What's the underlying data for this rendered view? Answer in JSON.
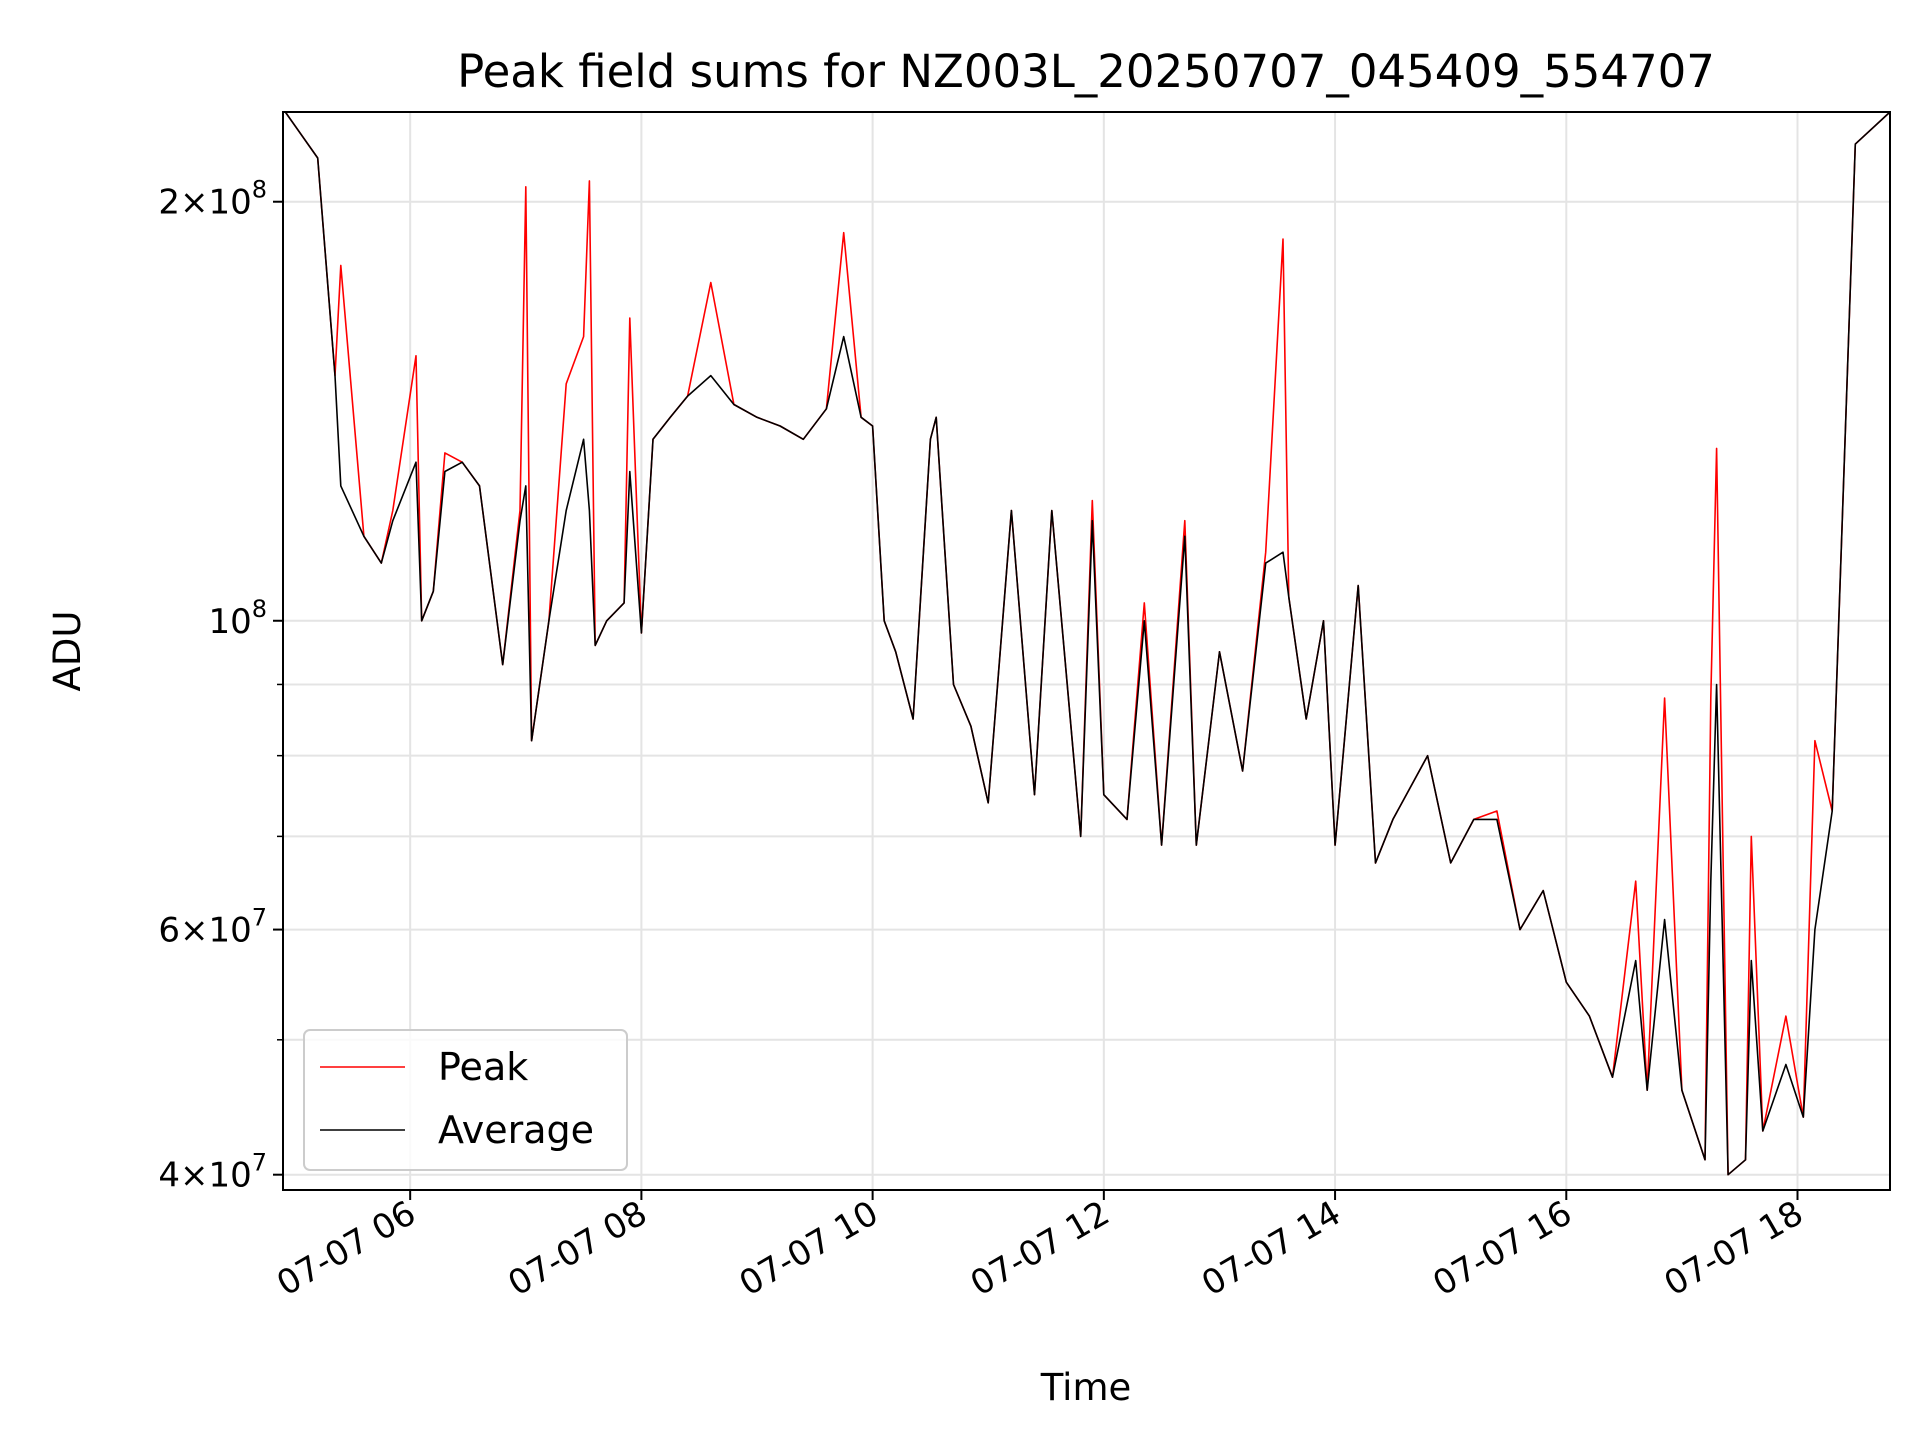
{
  "chart_data": {
    "type": "line",
    "title": "Peak field sums for NZ003L_20250707_045409_554707",
    "xlabel": "Time",
    "ylabel": "ADU",
    "y_scale": "log",
    "ylim": [
      39000000,
      232000000
    ],
    "xlim": [
      "07-07 04:54",
      "07-07 18:48"
    ],
    "grid": true,
    "legend_position": "lower-left",
    "x_tick_labels": [
      "07-07 06",
      "07-07 08",
      "07-07 10",
      "07-07 12",
      "07-07 14",
      "07-07 16",
      "07-07 18"
    ],
    "x_tick_hours": [
      6,
      8,
      10,
      12,
      14,
      16,
      18
    ],
    "y_tick_labels": [
      {
        "value": 40000000,
        "mantissa": "4",
        "exp": "7"
      },
      {
        "value": 60000000,
        "mantissa": "6",
        "exp": "7"
      },
      {
        "value": 100000000,
        "mantissa": "",
        "exp": "8"
      },
      {
        "value": 200000000,
        "mantissa": "2",
        "exp": "8"
      }
    ],
    "y_minor_ticks": [
      50000000,
      70000000,
      80000000,
      90000000
    ],
    "series": [
      {
        "name": "Peak",
        "color": "#ff0000",
        "x_hours": [
          4.92,
          5.2,
          5.35,
          5.4,
          5.6,
          5.75,
          5.85,
          6.05,
          6.1,
          6.2,
          6.3,
          6.45,
          6.6,
          6.8,
          6.95,
          7.0,
          7.05,
          7.2,
          7.35,
          7.5,
          7.55,
          7.6,
          7.7,
          7.85,
          7.9,
          8.0,
          8.1,
          8.25,
          8.4,
          8.6,
          8.8,
          9.0,
          9.2,
          9.4,
          9.6,
          9.75,
          9.9,
          10.0,
          10.1,
          10.2,
          10.35,
          10.5,
          10.55,
          10.7,
          10.85,
          11.0,
          11.2,
          11.4,
          11.55,
          11.8,
          11.9,
          12.0,
          12.2,
          12.35,
          12.5,
          12.7,
          12.8,
          13.0,
          13.2,
          13.4,
          13.55,
          13.6,
          13.75,
          13.9,
          14.0,
          14.2,
          14.35,
          14.5,
          14.8,
          15.0,
          15.2,
          15.4,
          15.6,
          15.8,
          16.0,
          16.2,
          16.4,
          16.6,
          16.7,
          16.85,
          17.0,
          17.2,
          17.25,
          17.3,
          17.4,
          17.55,
          17.6,
          17.7,
          17.9,
          18.05,
          18.15,
          18.3,
          18.5,
          18.8
        ],
        "values": [
          232000000,
          215000000,
          150000000,
          180000000,
          115000000,
          110000000,
          120000000,
          155000000,
          100000000,
          105000000,
          132000000,
          130000000,
          125000000,
          93000000,
          120000000,
          205000000,
          82000000,
          100000000,
          148000000,
          160000000,
          207000000,
          96000000,
          100000000,
          103000000,
          165000000,
          98000000,
          135000000,
          140000000,
          145000000,
          175000000,
          143000000,
          140000000,
          138000000,
          135000000,
          142000000,
          190000000,
          140000000,
          138000000,
          100000000,
          95000000,
          85000000,
          135000000,
          140000000,
          90000000,
          84000000,
          74000000,
          120000000,
          75000000,
          120000000,
          70000000,
          122000000,
          75000000,
          72000000,
          103000000,
          69000000,
          118000000,
          69000000,
          95000000,
          78000000,
          112000000,
          188000000,
          104000000,
          85000000,
          100000000,
          69000000,
          106000000,
          67000000,
          72000000,
          80000000,
          67000000,
          72000000,
          73000000,
          60000000,
          64000000,
          55000000,
          52000000,
          47000000,
          65000000,
          46000000,
          88000000,
          46000000,
          41000000,
          88000000,
          133000000,
          40000000,
          41000000,
          70000000,
          43000000,
          52000000,
          44000000,
          82000000,
          73000000,
          220000000,
          232000000
        ]
      },
      {
        "name": "Average",
        "color": "#000000",
        "x_hours": [
          4.92,
          5.2,
          5.35,
          5.4,
          5.6,
          5.75,
          5.85,
          6.05,
          6.1,
          6.2,
          6.3,
          6.45,
          6.6,
          6.8,
          6.95,
          7.0,
          7.05,
          7.2,
          7.35,
          7.5,
          7.55,
          7.6,
          7.7,
          7.85,
          7.9,
          8.0,
          8.1,
          8.25,
          8.4,
          8.6,
          8.8,
          9.0,
          9.2,
          9.4,
          9.6,
          9.75,
          9.9,
          10.0,
          10.1,
          10.2,
          10.35,
          10.5,
          10.55,
          10.7,
          10.85,
          11.0,
          11.2,
          11.4,
          11.55,
          11.8,
          11.9,
          12.0,
          12.2,
          12.35,
          12.5,
          12.7,
          12.8,
          13.0,
          13.2,
          13.4,
          13.55,
          13.6,
          13.75,
          13.9,
          14.0,
          14.2,
          14.35,
          14.5,
          14.8,
          15.0,
          15.2,
          15.4,
          15.6,
          15.8,
          16.0,
          16.2,
          16.4,
          16.6,
          16.7,
          16.85,
          17.0,
          17.2,
          17.25,
          17.3,
          17.4,
          17.55,
          17.6,
          17.7,
          17.9,
          18.05,
          18.15,
          18.3,
          18.5,
          18.8
        ],
        "values": [
          232000000,
          215000000,
          150000000,
          125000000,
          115000000,
          110000000,
          118000000,
          130000000,
          100000000,
          105000000,
          128000000,
          130000000,
          125000000,
          93000000,
          118000000,
          125000000,
          82000000,
          100000000,
          120000000,
          135000000,
          120000000,
          96000000,
          100000000,
          103000000,
          128000000,
          98000000,
          135000000,
          140000000,
          145000000,
          150000000,
          143000000,
          140000000,
          138000000,
          135000000,
          142000000,
          160000000,
          140000000,
          138000000,
          100000000,
          95000000,
          85000000,
          135000000,
          140000000,
          90000000,
          84000000,
          74000000,
          120000000,
          75000000,
          120000000,
          70000000,
          118000000,
          75000000,
          72000000,
          100000000,
          69000000,
          115000000,
          69000000,
          95000000,
          78000000,
          110000000,
          112000000,
          104000000,
          85000000,
          100000000,
          69000000,
          106000000,
          67000000,
          72000000,
          80000000,
          67000000,
          72000000,
          72000000,
          60000000,
          64000000,
          55000000,
          52000000,
          47000000,
          57000000,
          46000000,
          61000000,
          46000000,
          41000000,
          65000000,
          90000000,
          40000000,
          41000000,
          57000000,
          43000000,
          48000000,
          44000000,
          60000000,
          73000000,
          220000000,
          232000000
        ]
      }
    ]
  }
}
